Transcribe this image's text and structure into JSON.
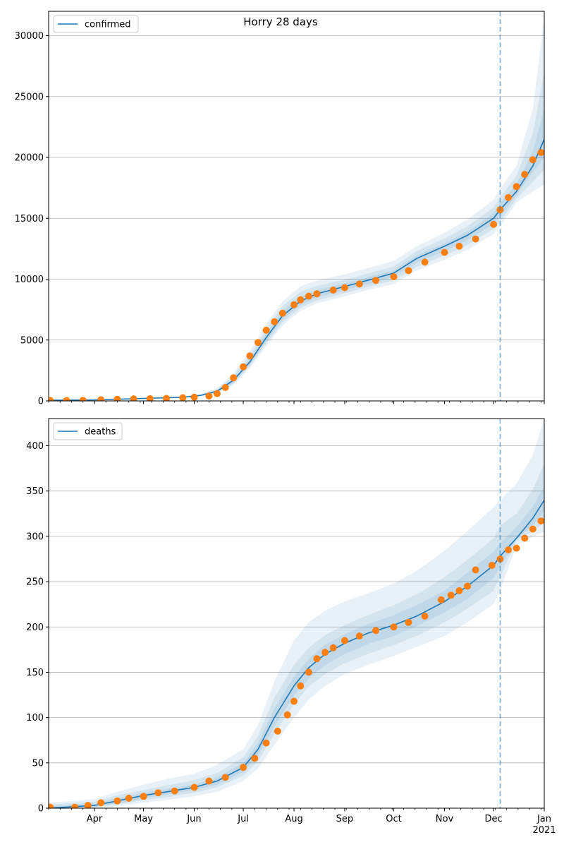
{
  "chart_data": {
    "type": "line",
    "title": "Horry 28 days",
    "colors": {
      "model": "#1f77b4",
      "observed": "#ff7f0e",
      "band": "#1f77b4",
      "forecast_line": "#1f77b4",
      "grid": "#b0b0b0"
    },
    "x_axis": {
      "type": "date",
      "range": [
        "2020-03-04",
        "2021-01-01"
      ],
      "ticks": [
        {
          "date": "2020-04-01",
          "label": "Apr"
        },
        {
          "date": "2020-05-01",
          "label": "May"
        },
        {
          "date": "2020-06-01",
          "label": "Jun"
        },
        {
          "date": "2020-07-01",
          "label": "Jul"
        },
        {
          "date": "2020-08-01",
          "label": "Aug"
        },
        {
          "date": "2020-09-01",
          "label": "Sep"
        },
        {
          "date": "2020-10-01",
          "label": "Oct"
        },
        {
          "date": "2020-11-01",
          "label": "Nov"
        },
        {
          "date": "2020-12-01",
          "label": "Dec"
        },
        {
          "date": "2021-01-01",
          "label": "Jan"
        }
      ],
      "year_label": "2021"
    },
    "forecast_start": "2020-12-05",
    "grid": "y-major",
    "legend_placement": "upper left",
    "panels": [
      {
        "name": "confirmed",
        "legend": "confirmed",
        "ylim": [
          0,
          32000
        ],
        "yticks": [
          0,
          5000,
          10000,
          15000,
          20000,
          25000,
          30000
        ],
        "model": {
          "x": [
            "2020-03-04",
            "2020-04-01",
            "2020-05-01",
            "2020-05-25",
            "2020-06-05",
            "2020-06-15",
            "2020-06-25",
            "2020-07-05",
            "2020-07-15",
            "2020-07-25",
            "2020-08-05",
            "2020-08-15",
            "2020-09-01",
            "2020-09-15",
            "2020-10-01",
            "2020-10-15",
            "2020-11-01",
            "2020-11-15",
            "2020-12-01",
            "2020-12-05",
            "2020-12-15",
            "2020-12-25",
            "2021-01-01"
          ],
          "y": [
            50,
            80,
            200,
            300,
            450,
            800,
            1700,
            3200,
            5200,
            7000,
            8200,
            8800,
            9400,
            9900,
            10500,
            11700,
            12700,
            13600,
            15000,
            15700,
            17200,
            19300,
            21500
          ]
        },
        "bands": [
          {
            "lower": [
              0,
              60,
              160,
              260,
              400,
              650,
              1300,
              2700,
              4500,
              6200,
              7400,
              8000,
              8600,
              9100,
              9600,
              10700,
              11600,
              12400,
              13700,
              14300,
              16300,
              17200,
              17800
            ],
            "upper": [
              120,
              130,
              260,
              380,
              560,
              1050,
              2300,
              4100,
              6300,
              8200,
              9400,
              9900,
              10400,
              10900,
              11500,
              12700,
              13800,
              14900,
              16500,
              17400,
              19300,
              24000,
              31500
            ]
          },
          {
            "lower": [
              0,
              65,
              170,
              270,
              410,
              690,
              1420,
              2850,
              4700,
              6450,
              7650,
              8250,
              8850,
              9350,
              9900,
              11000,
              11950,
              12800,
              14150,
              14700,
              16600,
              18000,
              19000
            ],
            "upper": [
              100,
              110,
              240,
              350,
              520,
              960,
              2050,
              3750,
              5900,
              7800,
              8950,
              9450,
              9950,
              10450,
              11050,
              12300,
              13350,
              14350,
              15900,
              16700,
              18500,
              22000,
              27000
            ]
          },
          {
            "lower": [
              10,
              70,
              180,
              280,
              425,
              730,
              1530,
              3000,
              4900,
              6700,
              7900,
              8500,
              9100,
              9600,
              10200,
              11350,
              12300,
              13200,
              14550,
              15150,
              16900,
              18800,
              20000
            ],
            "upper": [
              80,
              100,
              225,
              330,
              490,
              890,
              1850,
              3450,
              5550,
              7400,
              8550,
              9100,
              9650,
              10150,
              10750,
              11950,
              12950,
              13900,
              15400,
              16250,
              17800,
              20500,
              24000
            ]
          }
        ],
        "observed": {
          "x": [
            "2020-03-05",
            "2020-03-15",
            "2020-03-25",
            "2020-04-05",
            "2020-04-15",
            "2020-04-25",
            "2020-05-05",
            "2020-05-15",
            "2020-05-25",
            "2020-06-01",
            "2020-06-10",
            "2020-06-15",
            "2020-06-20",
            "2020-06-25",
            "2020-07-01",
            "2020-07-05",
            "2020-07-10",
            "2020-07-15",
            "2020-07-20",
            "2020-07-25",
            "2020-08-01",
            "2020-08-05",
            "2020-08-10",
            "2020-08-15",
            "2020-08-25",
            "2020-09-01",
            "2020-09-10",
            "2020-09-20",
            "2020-10-01",
            "2020-10-10",
            "2020-10-20",
            "2020-11-01",
            "2020-11-10",
            "2020-11-20",
            "2020-12-01",
            "2020-12-05",
            "2020-12-10",
            "2020-12-15",
            "2020-12-20",
            "2020-12-25",
            "2020-12-30"
          ],
          "y": [
            30,
            30,
            40,
            90,
            130,
            170,
            180,
            200,
            260,
            300,
            400,
            600,
            1100,
            1900,
            2800,
            3700,
            4800,
            5800,
            6500,
            7200,
            7900,
            8300,
            8600,
            8800,
            9100,
            9300,
            9600,
            9900,
            10200,
            10700,
            11400,
            12200,
            12700,
            13300,
            14500,
            15700,
            16700,
            17600,
            18600,
            19800,
            20400
          ]
        }
      },
      {
        "name": "deaths",
        "legend": "deaths",
        "ylim": [
          0,
          430
        ],
        "yticks": [
          0,
          50,
          100,
          150,
          200,
          250,
          300,
          350,
          400
        ],
        "model": {
          "x": [
            "2020-03-04",
            "2020-04-01",
            "2020-04-15",
            "2020-05-01",
            "2020-05-15",
            "2020-06-01",
            "2020-06-15",
            "2020-07-01",
            "2020-07-10",
            "2020-07-20",
            "2020-08-01",
            "2020-08-10",
            "2020-08-20",
            "2020-09-01",
            "2020-09-15",
            "2020-10-01",
            "2020-10-15",
            "2020-11-01",
            "2020-11-15",
            "2020-12-01",
            "2020-12-05",
            "2020-12-15",
            "2020-12-25",
            "2021-01-01"
          ],
          "y": [
            0,
            3,
            8,
            14,
            18,
            23,
            30,
            45,
            65,
            100,
            135,
            155,
            170,
            182,
            193,
            202,
            212,
            228,
            245,
            268,
            278,
            298,
            320,
            340
          ]
        },
        "bands": [
          {
            "lower": [
              0,
              0,
              2,
              6,
              9,
              13,
              18,
              30,
              44,
              70,
              100,
              120,
              135,
              148,
              158,
              168,
              178,
              190,
              205,
              225,
              240,
              290,
              300,
              305
            ],
            "upper": [
              6,
              10,
              18,
              26,
              32,
              38,
              48,
              65,
              92,
              140,
              185,
              205,
              218,
              228,
              237,
              248,
              262,
              284,
              306,
              332,
              340,
              358,
              390,
              430
            ]
          },
          {
            "lower": [
              0,
              1,
              4,
              9,
              12,
              17,
              23,
              36,
              52,
              82,
              115,
              134,
              148,
              160,
              170,
              180,
              190,
              205,
              220,
              240,
              255,
              295,
              306,
              315
            ],
            "upper": [
              4,
              7,
              14,
              20,
              25,
              31,
              39,
              56,
              80,
              122,
              158,
              177,
              191,
              202,
              213,
              224,
              236,
              255,
              274,
              298,
              312,
              325,
              352,
              380
            ]
          },
          {
            "lower": [
              0,
              2,
              5,
              11,
              15,
              20,
              26,
              40,
              58,
              90,
              124,
              143,
              158,
              170,
              181,
              190,
              201,
              216,
              231,
              254,
              266,
              297,
              312,
              328
            ],
            "upper": [
              2,
              5,
              11,
              17,
              21,
              26,
              34,
              50,
              72,
              110,
              145,
              165,
              180,
              192,
              203,
              213,
              224,
              240,
              260,
              283,
              292,
              310,
              333,
              355
            ]
          }
        ],
        "observed": {
          "x": [
            "2020-03-05",
            "2020-03-20",
            "2020-03-28",
            "2020-04-05",
            "2020-04-15",
            "2020-04-22",
            "2020-05-01",
            "2020-05-10",
            "2020-05-20",
            "2020-06-01",
            "2020-06-10",
            "2020-06-20",
            "2020-07-01",
            "2020-07-08",
            "2020-07-15",
            "2020-07-22",
            "2020-07-28",
            "2020-08-01",
            "2020-08-05",
            "2020-08-10",
            "2020-08-15",
            "2020-08-20",
            "2020-08-25",
            "2020-09-01",
            "2020-09-10",
            "2020-09-20",
            "2020-10-01",
            "2020-10-10",
            "2020-10-20",
            "2020-10-30",
            "2020-11-05",
            "2020-11-10",
            "2020-11-15",
            "2020-11-20",
            "2020-11-30",
            "2020-12-05",
            "2020-12-10",
            "2020-12-15",
            "2020-12-20",
            "2020-12-25",
            "2020-12-30"
          ],
          "y": [
            1,
            1,
            3,
            6,
            8,
            11,
            13,
            17,
            19,
            23,
            30,
            34,
            45,
            55,
            72,
            85,
            103,
            118,
            135,
            150,
            165,
            172,
            177,
            185,
            190,
            196,
            200,
            205,
            212,
            230,
            235,
            240,
            245,
            263,
            268,
            275,
            285,
            287,
            298,
            308,
            317
          ]
        }
      }
    ]
  }
}
